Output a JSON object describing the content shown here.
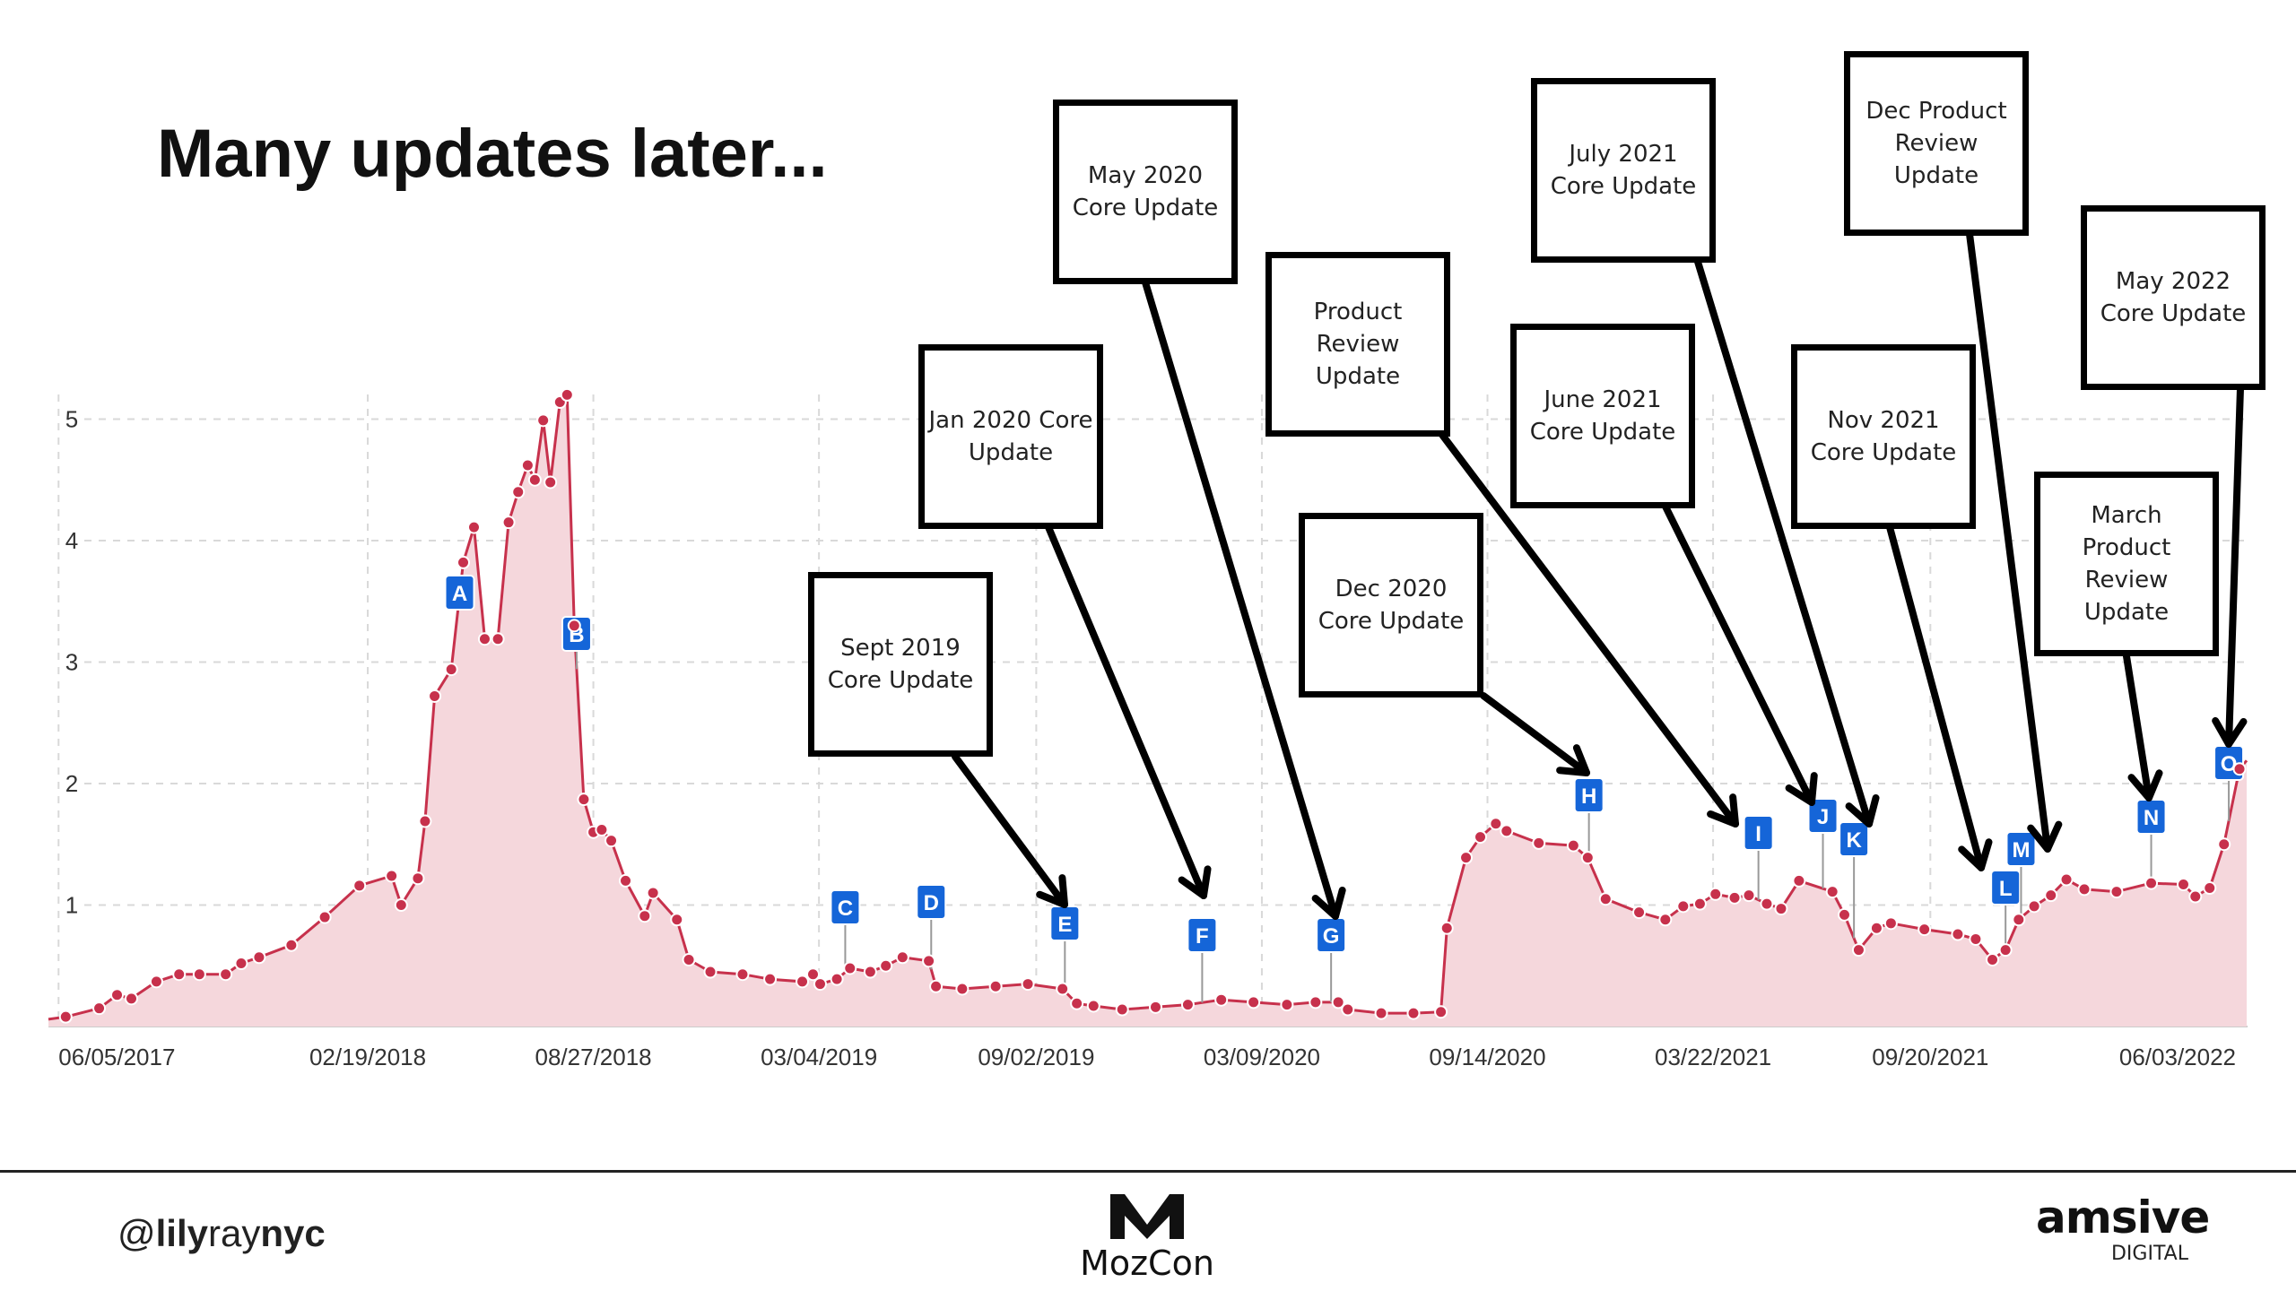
{
  "slide": {
    "title": "Many updates later..."
  },
  "footer": {
    "handle_parts": [
      "@",
      "lily",
      "ray",
      "nyc"
    ],
    "center_logo": "MozCon",
    "right_logo": "amsive",
    "right_logo_sub": "DIGITAL"
  },
  "colors": {
    "line": "#c7314c",
    "fill": "#f5d7dc",
    "flag": "#1565d8",
    "grid": "#d9d9d9",
    "callout_border": "#000000"
  },
  "chart_data": {
    "type": "area",
    "title": "",
    "xlabel": "",
    "ylabel": "",
    "ylim": [
      0,
      5.2
    ],
    "yticks": [
      "1",
      "2",
      "3",
      "4",
      "5"
    ],
    "xticks": [
      "06/05/2017",
      "02/19/2018",
      "08/27/2018",
      "03/04/2019",
      "09/02/2019",
      "03/09/2020",
      "09/14/2020",
      "03/22/2021",
      "09/20/2021",
      "06/03/2022"
    ],
    "grid": true,
    "legend": "none",
    "points": [
      [
        "2017-05-27",
        0.06
      ],
      [
        "2017-06-11",
        0.08
      ],
      [
        "2017-07-09",
        0.15
      ],
      [
        "2017-07-24",
        0.26
      ],
      [
        "2017-08-05",
        0.23
      ],
      [
        "2017-08-26",
        0.37
      ],
      [
        "2017-09-14",
        0.43
      ],
      [
        "2017-10-01",
        0.43
      ],
      [
        "2017-10-23",
        0.43
      ],
      [
        "2017-11-05",
        0.52
      ],
      [
        "2017-11-20",
        0.57
      ],
      [
        "2017-12-17",
        0.67
      ],
      [
        "2018-01-14",
        0.9
      ],
      [
        "2018-02-12",
        1.16
      ],
      [
        "2018-03-11",
        1.24
      ],
      [
        "2018-03-19",
        1.0
      ],
      [
        "2018-04-02",
        1.22
      ],
      [
        "2018-04-08",
        1.69
      ],
      [
        "2018-04-16",
        2.72
      ],
      [
        "2018-04-30",
        2.94
      ],
      [
        "2018-05-10",
        3.82
      ],
      [
        "2018-05-19",
        4.11
      ],
      [
        "2018-05-28",
        3.19
      ],
      [
        "2018-06-08",
        3.19
      ],
      [
        "2018-06-17",
        4.15
      ],
      [
        "2018-06-25",
        4.4
      ],
      [
        "2018-07-03",
        4.62
      ],
      [
        "2018-07-09",
        4.5
      ],
      [
        "2018-07-16",
        4.99
      ],
      [
        "2018-07-22",
        4.48
      ],
      [
        "2018-07-30",
        5.14
      ],
      [
        "2018-08-05",
        5.2
      ],
      [
        "2018-08-11",
        3.3
      ],
      [
        "2018-08-19",
        1.87
      ],
      [
        "2018-08-27",
        1.6
      ],
      [
        "2018-09-03",
        1.62
      ],
      [
        "2018-09-11",
        1.53
      ],
      [
        "2018-09-23",
        1.2
      ],
      [
        "2018-10-09",
        0.91
      ],
      [
        "2018-10-16",
        1.1
      ],
      [
        "2018-11-05",
        0.88
      ],
      [
        "2018-11-15",
        0.55
      ],
      [
        "2018-12-03",
        0.45
      ],
      [
        "2018-12-30",
        0.43
      ],
      [
        "2019-01-22",
        0.39
      ],
      [
        "2019-02-18",
        0.37
      ],
      [
        "2019-02-27",
        0.43
      ],
      [
        "2019-03-05",
        0.35
      ],
      [
        "2019-03-19",
        0.39
      ],
      [
        "2019-03-30",
        0.48
      ],
      [
        "2019-04-16",
        0.45
      ],
      [
        "2019-04-29",
        0.5
      ],
      [
        "2019-05-13",
        0.57
      ],
      [
        "2019-06-04",
        0.54
      ],
      [
        "2019-06-10",
        0.33
      ],
      [
        "2019-07-02",
        0.31
      ],
      [
        "2019-07-30",
        0.33
      ],
      [
        "2019-08-26",
        0.35
      ],
      [
        "2019-09-24",
        0.31
      ],
      [
        "2019-10-06",
        0.19
      ],
      [
        "2019-10-20",
        0.17
      ],
      [
        "2019-11-13",
        0.14
      ],
      [
        "2019-12-11",
        0.16
      ],
      [
        "2020-01-07",
        0.18
      ],
      [
        "2020-02-04",
        0.22
      ],
      [
        "2020-03-02",
        0.2
      ],
      [
        "2020-03-30",
        0.18
      ],
      [
        "2020-04-23",
        0.2
      ],
      [
        "2020-05-12",
        0.2
      ],
      [
        "2020-05-20",
        0.14
      ],
      [
        "2020-06-17",
        0.11
      ],
      [
        "2020-07-14",
        0.11
      ],
      [
        "2020-08-06",
        0.12
      ],
      [
        "2020-08-11",
        0.81
      ],
      [
        "2020-08-27",
        1.39
      ],
      [
        "2020-09-08",
        1.56
      ],
      [
        "2020-09-21",
        1.67
      ],
      [
        "2020-09-30",
        1.61
      ],
      [
        "2020-10-27",
        1.51
      ],
      [
        "2020-11-25",
        1.49
      ],
      [
        "2020-12-07",
        1.39
      ],
      [
        "2020-12-22",
        1.05
      ],
      [
        "2021-01-19",
        0.94
      ],
      [
        "2021-02-10",
        0.88
      ],
      [
        "2021-02-25",
        0.99
      ],
      [
        "2021-03-11",
        1.01
      ],
      [
        "2021-03-24",
        1.09
      ],
      [
        "2021-04-09",
        1.06
      ],
      [
        "2021-04-21",
        1.08
      ],
      [
        "2021-05-06",
        1.01
      ],
      [
        "2021-05-18",
        0.97
      ],
      [
        "2021-06-02",
        1.2
      ],
      [
        "2021-06-30",
        1.11
      ],
      [
        "2021-07-10",
        0.92
      ],
      [
        "2021-07-22",
        0.63
      ],
      [
        "2021-08-06",
        0.81
      ],
      [
        "2021-08-18",
        0.85
      ],
      [
        "2021-09-15",
        0.8
      ],
      [
        "2021-10-13",
        0.76
      ],
      [
        "2021-10-28",
        0.72
      ],
      [
        "2021-11-11",
        0.55
      ],
      [
        "2021-11-22",
        0.63
      ],
      [
        "2021-12-03",
        0.88
      ],
      [
        "2021-12-16",
        0.99
      ],
      [
        "2021-12-30",
        1.08
      ],
      [
        "2022-01-12",
        1.21
      ],
      [
        "2022-01-27",
        1.13
      ],
      [
        "2022-02-23",
        1.11
      ],
      [
        "2022-03-24",
        1.18
      ],
      [
        "2022-04-20",
        1.17
      ],
      [
        "2022-04-30",
        1.07
      ],
      [
        "2022-05-12",
        1.14
      ],
      [
        "2022-05-24",
        1.5
      ],
      [
        "2022-06-06",
        2.12
      ],
      [
        "2022-06-12",
        2.19
      ]
    ],
    "annotations": [
      {
        "label": "A",
        "date": "2018-05-07"
      },
      {
        "label": "B",
        "date": "2018-08-13"
      },
      {
        "label": "C",
        "date": "2019-03-26"
      },
      {
        "label": "D",
        "date": "2019-06-06"
      },
      {
        "label": "E",
        "date": "2019-09-26"
      },
      {
        "label": "F",
        "date": "2020-01-19"
      },
      {
        "label": "G",
        "date": "2020-05-06"
      },
      {
        "label": "H",
        "date": "2020-12-08"
      },
      {
        "label": "I",
        "date": "2021-04-29"
      },
      {
        "label": "J",
        "date": "2021-06-22"
      },
      {
        "label": "K",
        "date": "2021-07-18"
      },
      {
        "label": "L",
        "date": "2021-11-22"
      },
      {
        "label": "M",
        "date": "2021-12-05"
      },
      {
        "label": "N",
        "date": "2022-03-24"
      },
      {
        "label": "O",
        "date": "2022-05-28"
      }
    ],
    "callouts": [
      {
        "lines": [
          "Sept 2019",
          "Core Update"
        ],
        "target": "E"
      },
      {
        "lines": [
          "Jan 2020 Core",
          "Update"
        ],
        "target": "F"
      },
      {
        "lines": [
          "May 2020",
          "Core Update"
        ],
        "target": "G"
      },
      {
        "lines": [
          "Product",
          "Review",
          "Update"
        ],
        "target": "I"
      },
      {
        "lines": [
          "Dec 2020",
          "Core Update"
        ],
        "target": "H"
      },
      {
        "lines": [
          "June 2021",
          "Core Update"
        ],
        "target": "J"
      },
      {
        "lines": [
          "July 2021",
          "Core Update"
        ],
        "target": "K"
      },
      {
        "lines": [
          "Dec Product",
          "Review",
          "Update"
        ],
        "target": "M"
      },
      {
        "lines": [
          "Nov 2021",
          "Core Update"
        ],
        "target": "L"
      },
      {
        "lines": [
          "May 2022",
          "Core Update"
        ],
        "target": "O"
      },
      {
        "lines": [
          "March",
          "Product",
          "Review",
          "Update"
        ],
        "target": "N"
      }
    ]
  }
}
